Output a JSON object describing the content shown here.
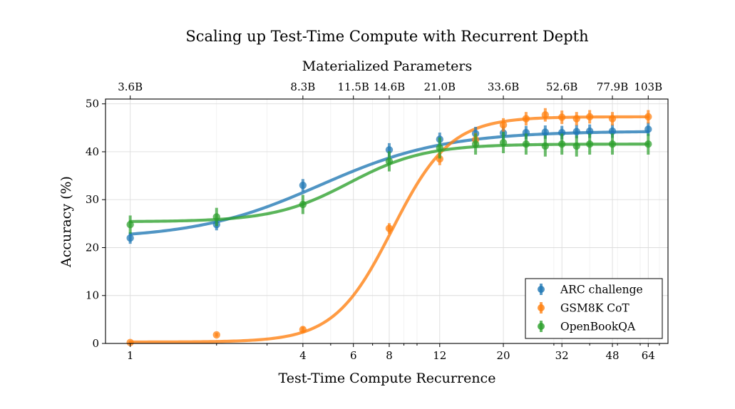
{
  "chart_data": {
    "type": "scatter",
    "title": "Scaling up Test-Time Compute with Recurrent Depth",
    "xlabel": "Test-Time Compute Recurrence",
    "ylabel": "Accuracy (%)",
    "x2label": "Materialized Parameters",
    "xscale": "log",
    "xlim": [
      0.82,
      75
    ],
    "ylim": [
      0,
      51
    ],
    "grid": true,
    "legend_position": "lower-right",
    "x_ticks": [
      1,
      4,
      6,
      8,
      12,
      20,
      32,
      48,
      64
    ],
    "x_tick_labels": [
      "1",
      "4",
      "6",
      "8",
      "12",
      "20",
      "32",
      "48",
      "64"
    ],
    "y_ticks": [
      0,
      10,
      20,
      30,
      40,
      50
    ],
    "y_tick_labels": [
      "0",
      "10",
      "20",
      "30",
      "40",
      "50"
    ],
    "x2_ticks": [
      1,
      4,
      6,
      8,
      12,
      20,
      32,
      48,
      64
    ],
    "x2_tick_labels": [
      "3.6B",
      "8.3B",
      "11.5B",
      "14.6B",
      "21.0B",
      "33.6B",
      "52.6B",
      "77.9B",
      "103B"
    ],
    "series": [
      {
        "name": "ARC challenge",
        "color": "#1f77b4",
        "x": [
          1,
          2,
          4,
          8,
          12,
          16,
          20,
          24,
          28,
          32,
          36,
          40,
          48,
          64
        ],
        "y": [
          22.0,
          24.8,
          33.0,
          40.4,
          42.6,
          43.8,
          43.9,
          44.0,
          44.1,
          44.0,
          44.2,
          44.3,
          44.3,
          44.7
        ],
        "err": [
          1.2,
          1.2,
          1.3,
          1.4,
          1.4,
          1.4,
          1.4,
          1.4,
          1.4,
          1.4,
          1.4,
          1.4,
          1.4,
          1.4
        ],
        "fit": {
          "lower": 21.8,
          "upper": 44.3,
          "mid": 4.6,
          "slope": 2.0
        }
      },
      {
        "name": "GSM8K CoT",
        "color": "#ff7f0e",
        "x": [
          1,
          2,
          4,
          8,
          12,
          16,
          20,
          24,
          28,
          32,
          36,
          40,
          48,
          64
        ],
        "y": [
          0.2,
          1.8,
          2.9,
          24.0,
          38.5,
          42.5,
          45.6,
          46.9,
          47.7,
          47.2,
          46.9,
          47.3,
          46.9,
          47.3
        ],
        "err": [
          0.2,
          0.4,
          0.6,
          1.1,
          1.3,
          1.4,
          1.4,
          1.4,
          1.4,
          1.4,
          1.4,
          1.4,
          1.4,
          1.4
        ],
        "fit": {
          "lower": 0.3,
          "upper": 47.3,
          "mid": 8.2,
          "slope": 4.3
        }
      },
      {
        "name": "OpenBookQA",
        "color": "#2ca02c",
        "x": [
          1,
          2,
          4,
          8,
          12,
          16,
          20,
          24,
          28,
          32,
          36,
          40,
          48,
          64
        ],
        "y": [
          24.8,
          26.4,
          29.0,
          38.0,
          40.8,
          41.6,
          41.9,
          41.6,
          41.2,
          41.6,
          41.2,
          41.6,
          41.6,
          41.6
        ],
        "err": [
          1.9,
          1.9,
          2.0,
          2.1,
          2.2,
          2.2,
          2.2,
          2.2,
          2.2,
          2.2,
          2.2,
          2.2,
          2.2,
          2.2
        ],
        "fit": {
          "lower": 25.4,
          "upper": 41.6,
          "mid": 5.8,
          "slope": 3.3
        }
      }
    ]
  }
}
